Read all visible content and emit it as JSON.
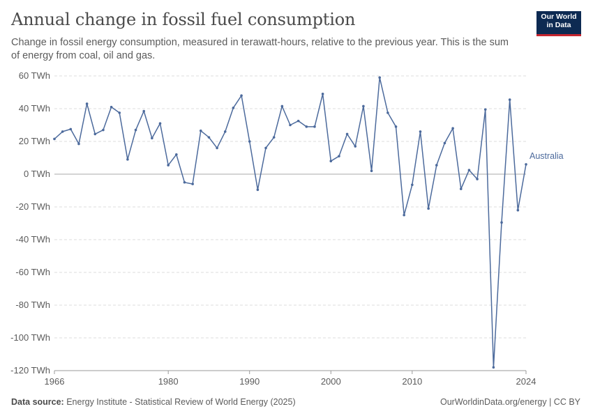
{
  "title": "Annual change in fossil fuel consumption",
  "subtitle": "Change in fossil energy consumption, measured in terawatt-hours, relative to the previous year. This is the sum of energy from coal, oil and gas.",
  "logo": {
    "line1": "Our World",
    "line2": "in Data"
  },
  "footer": {
    "source_label": "Data source:",
    "source_text": "Energy Institute - Statistical Review of World Energy (2025)",
    "right_text": "OurWorldinData.org/energy | CC BY"
  },
  "colors": {
    "series": "#4c6a9c",
    "grid": "#dddddd",
    "zero": "#a8a8a8",
    "text": "#5b5b5b"
  },
  "chart_data": {
    "type": "line",
    "title": "Annual change in fossil fuel consumption",
    "xlabel": "",
    "ylabel": "",
    "ylim": [
      -120,
      60
    ],
    "xlim": [
      1966,
      2024
    ],
    "y_ticks": [
      60,
      40,
      20,
      0,
      -20,
      -40,
      -60,
      -80,
      -100,
      -120
    ],
    "y_tick_labels": [
      "60 TWh",
      "40 TWh",
      "20 TWh",
      "0 TWh",
      "-20 TWh",
      "-40 TWh",
      "-60 TWh",
      "-80 TWh",
      "-100 TWh",
      "-120 TWh"
    ],
    "x_ticks": [
      1966,
      1980,
      1990,
      2000,
      2010,
      2024
    ],
    "x_tick_labels": [
      "1966",
      "1980",
      "1990",
      "2000",
      "2010",
      "2024"
    ],
    "grid": true,
    "series": [
      {
        "name": "Australia",
        "x": [
          1966,
          1967,
          1968,
          1969,
          1970,
          1971,
          1972,
          1973,
          1974,
          1975,
          1976,
          1977,
          1978,
          1979,
          1980,
          1981,
          1982,
          1983,
          1984,
          1985,
          1986,
          1987,
          1988,
          1989,
          1990,
          1991,
          1992,
          1993,
          1994,
          1995,
          1996,
          1997,
          1998,
          1999,
          2000,
          2001,
          2002,
          2003,
          2004,
          2005,
          2006,
          2007,
          2008,
          2009,
          2010,
          2011,
          2012,
          2013,
          2014,
          2015,
          2016,
          2017,
          2018,
          2019,
          2020,
          2021,
          2022,
          2023,
          2024
        ],
        "values": [
          21.5,
          26,
          27.5,
          18.5,
          43,
          24.5,
          27,
          41,
          37.5,
          9,
          27,
          38.5,
          22,
          31,
          5.5,
          12,
          -5,
          -6,
          26.5,
          22.5,
          16,
          26,
          40.5,
          48,
          20,
          -9.5,
          16,
          22.5,
          41.5,
          30,
          32.5,
          29,
          29,
          49,
          8,
          11,
          24.5,
          17,
          41.5,
          2,
          59,
          37.5,
          29,
          -25,
          -6.5,
          26,
          -21,
          5.5,
          19,
          28,
          -9,
          2.5,
          -3,
          39.5,
          -118,
          -29.5,
          45.5,
          -22,
          6
        ]
      }
    ]
  }
}
